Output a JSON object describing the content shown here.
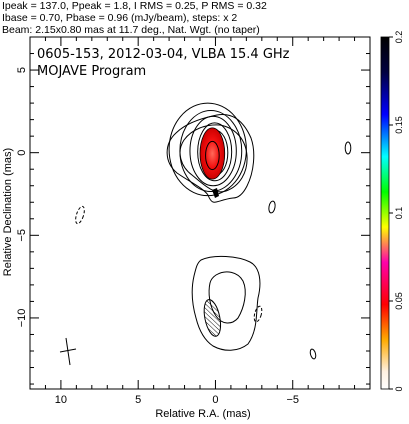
{
  "header": {
    "line1": "Ipeak = 137.0, Ppeak = 1.8, I RMS = 0.25, P RMS = 0.32",
    "line2": "Ibase = 0.70, Pbase = 0.96 (mJy/beam), steps: x 2",
    "line3": "Beam: 2.15x0.80 mas at 11.7 deg., Nat. Wgt. (no taper)"
  },
  "chart_data": {
    "type": "contour",
    "title": "0605-153, 2012-03-04, VLBA 15.4 GHz",
    "subtitle": "MOJAVE Program",
    "xlabel": "Relative R.A. (mas)",
    "ylabel": "Relative Declination (mas)",
    "xlim": [
      12,
      -10
    ],
    "ylim": [
      -14.3,
      7
    ],
    "xticks": [
      10,
      5,
      0,
      -5
    ],
    "yticks": [
      5,
      0,
      -5,
      -10
    ],
    "x_tick_labels": [
      "10",
      "5",
      "0",
      "−5"
    ],
    "y_tick_labels": [
      "5",
      "0",
      "−5",
      "−10"
    ],
    "colorbar": {
      "min": 0,
      "max": 0.2,
      "ticks": [
        0,
        0.05,
        0.1,
        0.15,
        0.2
      ],
      "tick_labels": [
        "0",
        "0.05",
        "0.1",
        "0.15",
        "0.2"
      ]
    },
    "beam": {
      "major_mas": 2.15,
      "minor_mas": 0.8,
      "pa_deg": 11.7,
      "center": [
        0.2,
        -10
      ]
    },
    "core_contours": [
      {
        "cx": 0,
        "cy": 0,
        "rx": 0.55,
        "ry": 1.0
      },
      {
        "cx": 0,
        "cy": 0,
        "rx": 0.8,
        "ry": 1.35
      },
      {
        "cx": 0.05,
        "cy": 0.05,
        "rx": 1.1,
        "ry": 1.75
      },
      {
        "cx": 0.15,
        "cy": 0.1,
        "rx": 1.5,
        "ry": 2.1
      },
      {
        "cx": 0.3,
        "cy": 0.1,
        "rx": 2.0,
        "ry": 2.45
      },
      {
        "cx": 0.5,
        "cy": 0.2,
        "rx": 2.5,
        "ry": 2.8
      }
    ],
    "polarized_blob": {
      "cx": 0.2,
      "cy": -0.05,
      "rx": 0.8,
      "ry": 1.55
    }
  }
}
